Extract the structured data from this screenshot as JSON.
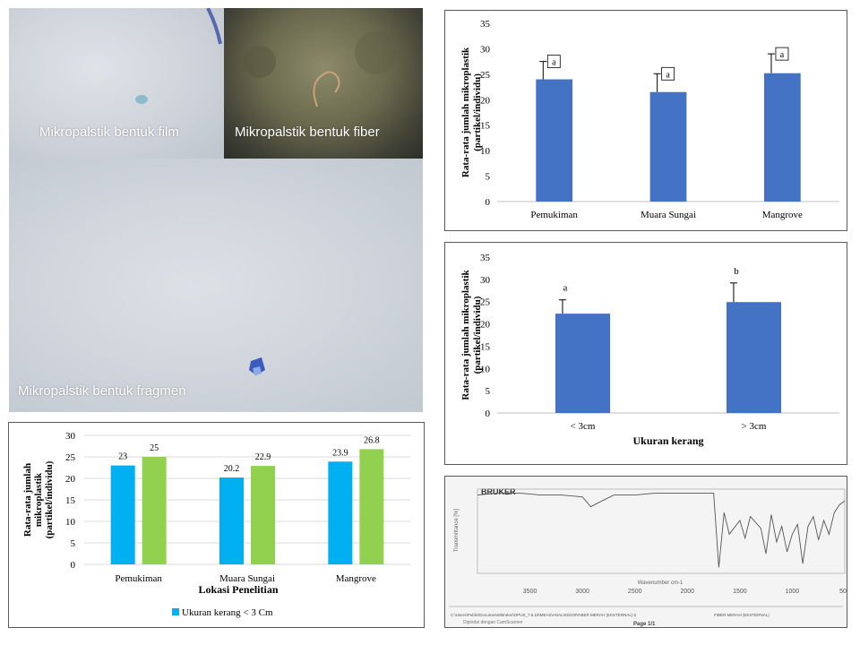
{
  "photos": {
    "film_label": "Mikropalstik bentuk film",
    "fiber_label": "Mikropalstik bentuk fiber",
    "fragment_label": "Mikropalstik bentuk fragmen"
  },
  "colors": {
    "bar_blue": "#4472c4",
    "bar_cyan": "#00b0f0",
    "bar_green": "#92d050",
    "axis": "#595959"
  },
  "chart_data": [
    {
      "id": "chart1",
      "type": "bar",
      "categories": [
        "Pemukiman",
        "Muara Sungai",
        "Mangrove"
      ],
      "values": [
        24,
        21.5,
        25.2
      ],
      "error_upper": [
        3.5,
        3.6,
        3.8
      ],
      "significance_letters": [
        "a",
        "a",
        "a"
      ],
      "ylabel_lines": [
        "Rata-rata  jumlah  mikroplastik",
        "(partikel/individu)"
      ],
      "xlabel": "",
      "ylim": [
        0,
        35
      ],
      "yticks": [
        0,
        5,
        10,
        15,
        20,
        25,
        30,
        35
      ],
      "grid": false,
      "color": "#4472c4"
    },
    {
      "id": "chart2",
      "type": "bar",
      "categories": [
        "< 3cm",
        "> 3cm"
      ],
      "values": [
        22.3,
        24.9
      ],
      "error_upper": [
        3.1,
        4.3
      ],
      "significance_letters": [
        "a",
        "b"
      ],
      "ylabel_lines": [
        "Rata-rata  jumlah  mikroplastik",
        "(partikel/individu)"
      ],
      "xlabel": "Ukuran kerang",
      "ylim": [
        0,
        35
      ],
      "yticks": [
        0,
        5,
        10,
        15,
        20,
        25,
        30,
        35
      ],
      "grid": false,
      "color": "#4472c4"
    },
    {
      "id": "chart3",
      "type": "bar",
      "categories": [
        "Pemukiman",
        "Muara Sungai",
        "Mangrove"
      ],
      "series": [
        {
          "name": "Ukuran kerang  < 3 Cm",
          "values": [
            23,
            20.2,
            23.9
          ],
          "color": "#00b0f0"
        },
        {
          "name": "",
          "values": [
            25,
            22.9,
            26.8
          ],
          "color": "#92d050"
        }
      ],
      "ylabel_lines": [
        "Rata-rata  jumlah",
        "mikroplastik",
        "(partikel/individu)"
      ],
      "xlabel": "Lokasi Penelitian",
      "ylim": [
        0,
        30
      ],
      "yticks": [
        0,
        5,
        10,
        15,
        20,
        25,
        30
      ],
      "grid": true,
      "legend": "bottom",
      "data_labels": true
    },
    {
      "id": "spectrum",
      "type": "line",
      "brand": "BRUKER",
      "xlabel": "Wavenumber cm-1",
      "ylabel": "Transmittance [%]",
      "x": [
        4000,
        3800,
        3600,
        3400,
        3200,
        3000,
        2920,
        2850,
        2700,
        2500,
        2300,
        2100,
        1900,
        1750,
        1700,
        1650,
        1600,
        1500,
        1450,
        1400,
        1300,
        1250,
        1200,
        1150,
        1100,
        1050,
        1000,
        950,
        900,
        850,
        800,
        750,
        700,
        650,
        600,
        550,
        500
      ],
      "y": [
        99.5,
        99.6,
        99.6,
        99.5,
        99.5,
        99.4,
        98.9,
        99.1,
        99.5,
        99.5,
        99.6,
        99.6,
        99.6,
        99.6,
        95.8,
        98.6,
        97.5,
        98.2,
        97.3,
        98.4,
        97.8,
        96.5,
        98.5,
        97.1,
        97.9,
        96.6,
        97.5,
        98.0,
        96.0,
        97.9,
        98.4,
        97.2,
        98.2,
        97.5,
        98.6,
        99.0,
        99.2
      ],
      "xticks": [
        3500,
        3000,
        2500,
        2000,
        1500,
        1000,
        500
      ],
      "footer_left": "C:\\Users\\Public\\Documents\\Bruker\\OPUS_7.5.18\\MEAS\\ANALISIS\\20\\FIBER MERAH (EKSTERNAL).0",
      "footer_right": "FIBER MERAH (EKSTERNAL)",
      "scanned_note": "Dipindai dengan CamScanner",
      "page_label": "Page 1/1"
    }
  ]
}
